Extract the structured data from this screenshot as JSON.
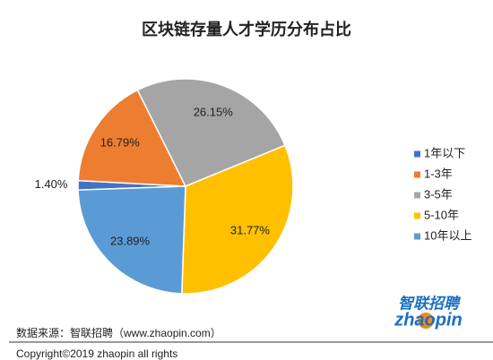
{
  "chart_data": {
    "type": "pie",
    "title": "区块链存量人才学历分布占比",
    "categories": [
      "1年以下",
      "1-3年",
      "3-5年",
      "5-10年",
      "10年以上"
    ],
    "values": [
      1.4,
      16.79,
      26.15,
      31.77,
      23.89
    ],
    "value_labels": [
      "1.40%",
      "16.79%",
      "26.15%",
      "31.77%",
      "23.89%"
    ],
    "colors": [
      "#4472c4",
      "#ed7d31",
      "#a5a5a5",
      "#ffc000",
      "#5b9bd5"
    ],
    "legend": "right"
  },
  "footer": {
    "source": "数据来源：智联招聘（www.zhaopin.com）",
    "copyright": "Copyright©2019    zhaopin    all    rights"
  },
  "logo": {
    "name": "智联招聘",
    "brand": "zhaopin"
  }
}
